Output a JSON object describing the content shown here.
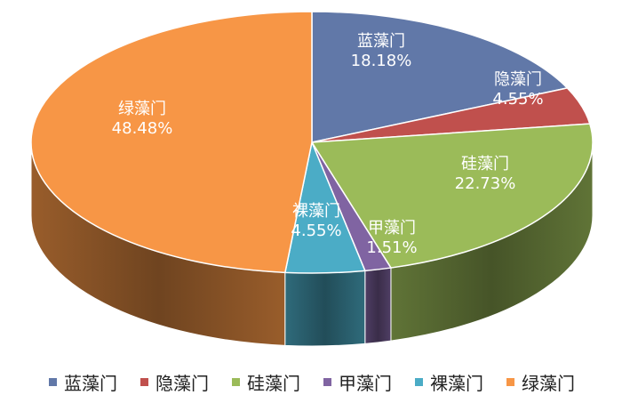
{
  "chart_data": {
    "type": "pie",
    "style": "3d",
    "title": "",
    "legend_position": "bottom",
    "slices": [
      {
        "label": "蓝藻门",
        "value": 18.18,
        "display": "18.18%",
        "color": "#6178A8"
      },
      {
        "label": "隐藻门",
        "value": 4.55,
        "display": "4.55%",
        "color": "#C0504D"
      },
      {
        "label": "硅藻门",
        "value": 22.73,
        "display": "22.73%",
        "color": "#9BBB59"
      },
      {
        "label": "甲藻门",
        "value": 1.51,
        "display": "1.51%",
        "color": "#8064A2"
      },
      {
        "label": "裸藻门",
        "value": 4.55,
        "display": "4.55%",
        "color": "#4BACC6"
      },
      {
        "label": "绿藻门",
        "value": 48.48,
        "display": "48.48%",
        "color": "#F79646"
      }
    ]
  }
}
